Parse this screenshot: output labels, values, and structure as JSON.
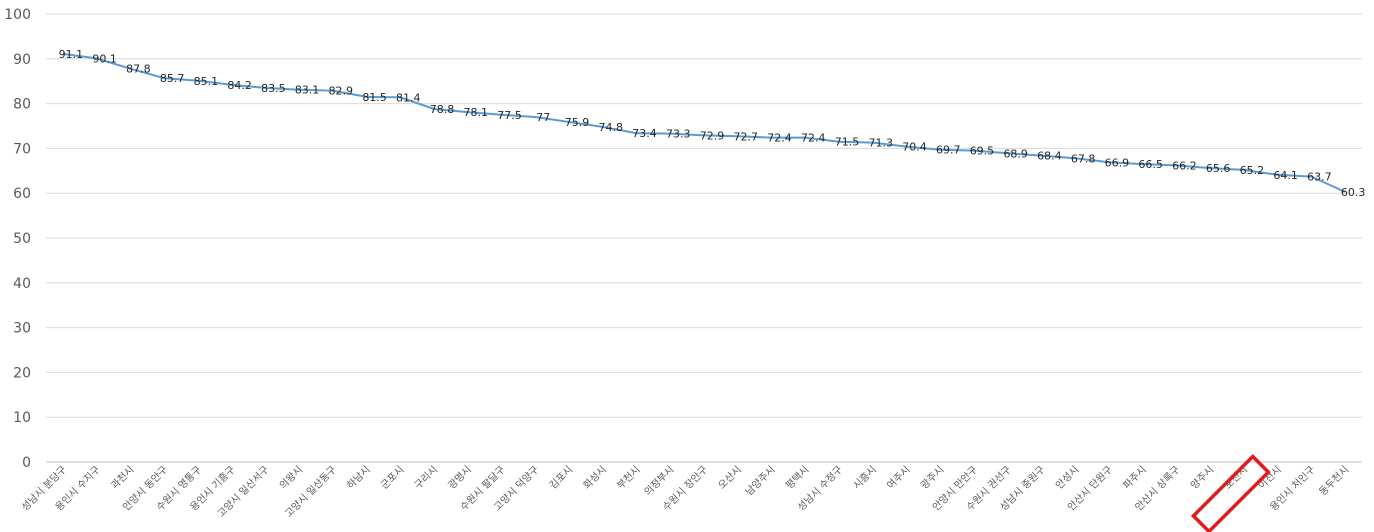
{
  "colors": {
    "line": "#5b9bd5",
    "grid": "#d9d9d9",
    "highlight": "#e01b1b"
  },
  "chart_data": {
    "type": "line",
    "title": "",
    "xlabel": "",
    "ylabel": "",
    "ylim": [
      0,
      100
    ],
    "yticks": [
      0,
      10,
      20,
      30,
      40,
      50,
      60,
      70,
      80,
      90,
      100
    ],
    "grid": true,
    "legend": "none",
    "categories": [
      "성남시 분당구",
      "용인시 수지구",
      "과천시",
      "안양시 동안구",
      "수원시 영통구",
      "용인시 기흥구",
      "고양시 일산서구",
      "의왕시",
      "고양시 일산동구",
      "하남시",
      "군포시",
      "구리시",
      "광명시",
      "수원시 팔달구",
      "고양시 덕양구",
      "김포시",
      "화성시",
      "부천시",
      "의정부시",
      "수원시 장안구",
      "오산시",
      "남양주시",
      "평택시",
      "성남시 수정구",
      "시흥시",
      "여주시",
      "광주시",
      "안양시 만안구",
      "수원시 권선구",
      "성남시 중원구",
      "안성시",
      "안산시 단원구",
      "파주시",
      "안산시 상록구",
      "양주시",
      "포천시",
      "이천시",
      "용인시 처인구",
      "동두천시"
    ],
    "series": [
      {
        "values": [
          91.1,
          90.1,
          87.8,
          85.7,
          85.1,
          84.2,
          83.5,
          83.1,
          82.9,
          81.5,
          81.4,
          78.8,
          78.1,
          77.5,
          77,
          75.9,
          74.8,
          73.4,
          73.3,
          72.9,
          72.7,
          72.4,
          72.4,
          71.5,
          71.3,
          70.4,
          69.7,
          69.5,
          68.9,
          68.4,
          67.8,
          66.9,
          66.5,
          66.2,
          65.6,
          65.2,
          64.1,
          63.7,
          60.3
        ]
      }
    ],
    "highlight_category": "포천시"
  }
}
